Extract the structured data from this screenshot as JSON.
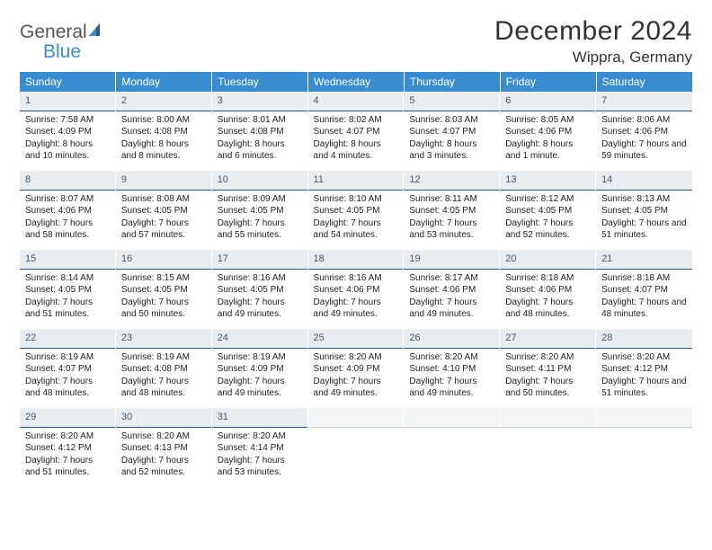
{
  "brand": {
    "word1": "General",
    "word2": "Blue"
  },
  "title": "December 2024",
  "location": "Wippra, Germany",
  "colors": {
    "header_bg": "#3a8cd0",
    "daynum_bg": "#e9edf0",
    "daynum_border": "#2e5a8a",
    "text": "#222222",
    "brand_blue": "#3a8cd0",
    "brand_gray": "#555555"
  },
  "weekdays": [
    "Sunday",
    "Monday",
    "Tuesday",
    "Wednesday",
    "Thursday",
    "Friday",
    "Saturday"
  ],
  "rows": [
    [
      {
        "day": "1",
        "sunrise": "Sunrise: 7:58 AM",
        "sunset": "Sunset: 4:09 PM",
        "daylight": "Daylight: 8 hours and 10 minutes."
      },
      {
        "day": "2",
        "sunrise": "Sunrise: 8:00 AM",
        "sunset": "Sunset: 4:08 PM",
        "daylight": "Daylight: 8 hours and 8 minutes."
      },
      {
        "day": "3",
        "sunrise": "Sunrise: 8:01 AM",
        "sunset": "Sunset: 4:08 PM",
        "daylight": "Daylight: 8 hours and 6 minutes."
      },
      {
        "day": "4",
        "sunrise": "Sunrise: 8:02 AM",
        "sunset": "Sunset: 4:07 PM",
        "daylight": "Daylight: 8 hours and 4 minutes."
      },
      {
        "day": "5",
        "sunrise": "Sunrise: 8:03 AM",
        "sunset": "Sunset: 4:07 PM",
        "daylight": "Daylight: 8 hours and 3 minutes."
      },
      {
        "day": "6",
        "sunrise": "Sunrise: 8:05 AM",
        "sunset": "Sunset: 4:06 PM",
        "daylight": "Daylight: 8 hours and 1 minute."
      },
      {
        "day": "7",
        "sunrise": "Sunrise: 8:06 AM",
        "sunset": "Sunset: 4:06 PM",
        "daylight": "Daylight: 7 hours and 59 minutes."
      }
    ],
    [
      {
        "day": "8",
        "sunrise": "Sunrise: 8:07 AM",
        "sunset": "Sunset: 4:06 PM",
        "daylight": "Daylight: 7 hours and 58 minutes."
      },
      {
        "day": "9",
        "sunrise": "Sunrise: 8:08 AM",
        "sunset": "Sunset: 4:05 PM",
        "daylight": "Daylight: 7 hours and 57 minutes."
      },
      {
        "day": "10",
        "sunrise": "Sunrise: 8:09 AM",
        "sunset": "Sunset: 4:05 PM",
        "daylight": "Daylight: 7 hours and 55 minutes."
      },
      {
        "day": "11",
        "sunrise": "Sunrise: 8:10 AM",
        "sunset": "Sunset: 4:05 PM",
        "daylight": "Daylight: 7 hours and 54 minutes."
      },
      {
        "day": "12",
        "sunrise": "Sunrise: 8:11 AM",
        "sunset": "Sunset: 4:05 PM",
        "daylight": "Daylight: 7 hours and 53 minutes."
      },
      {
        "day": "13",
        "sunrise": "Sunrise: 8:12 AM",
        "sunset": "Sunset: 4:05 PM",
        "daylight": "Daylight: 7 hours and 52 minutes."
      },
      {
        "day": "14",
        "sunrise": "Sunrise: 8:13 AM",
        "sunset": "Sunset: 4:05 PM",
        "daylight": "Daylight: 7 hours and 51 minutes."
      }
    ],
    [
      {
        "day": "15",
        "sunrise": "Sunrise: 8:14 AM",
        "sunset": "Sunset: 4:05 PM",
        "daylight": "Daylight: 7 hours and 51 minutes."
      },
      {
        "day": "16",
        "sunrise": "Sunrise: 8:15 AM",
        "sunset": "Sunset: 4:05 PM",
        "daylight": "Daylight: 7 hours and 50 minutes."
      },
      {
        "day": "17",
        "sunrise": "Sunrise: 8:16 AM",
        "sunset": "Sunset: 4:05 PM",
        "daylight": "Daylight: 7 hours and 49 minutes."
      },
      {
        "day": "18",
        "sunrise": "Sunrise: 8:16 AM",
        "sunset": "Sunset: 4:06 PM",
        "daylight": "Daylight: 7 hours and 49 minutes."
      },
      {
        "day": "19",
        "sunrise": "Sunrise: 8:17 AM",
        "sunset": "Sunset: 4:06 PM",
        "daylight": "Daylight: 7 hours and 49 minutes."
      },
      {
        "day": "20",
        "sunrise": "Sunrise: 8:18 AM",
        "sunset": "Sunset: 4:06 PM",
        "daylight": "Daylight: 7 hours and 48 minutes."
      },
      {
        "day": "21",
        "sunrise": "Sunrise: 8:18 AM",
        "sunset": "Sunset: 4:07 PM",
        "daylight": "Daylight: 7 hours and 48 minutes."
      }
    ],
    [
      {
        "day": "22",
        "sunrise": "Sunrise: 8:19 AM",
        "sunset": "Sunset: 4:07 PM",
        "daylight": "Daylight: 7 hours and 48 minutes."
      },
      {
        "day": "23",
        "sunrise": "Sunrise: 8:19 AM",
        "sunset": "Sunset: 4:08 PM",
        "daylight": "Daylight: 7 hours and 48 minutes."
      },
      {
        "day": "24",
        "sunrise": "Sunrise: 8:19 AM",
        "sunset": "Sunset: 4:09 PM",
        "daylight": "Daylight: 7 hours and 49 minutes."
      },
      {
        "day": "25",
        "sunrise": "Sunrise: 8:20 AM",
        "sunset": "Sunset: 4:09 PM",
        "daylight": "Daylight: 7 hours and 49 minutes."
      },
      {
        "day": "26",
        "sunrise": "Sunrise: 8:20 AM",
        "sunset": "Sunset: 4:10 PM",
        "daylight": "Daylight: 7 hours and 49 minutes."
      },
      {
        "day": "27",
        "sunrise": "Sunrise: 8:20 AM",
        "sunset": "Sunset: 4:11 PM",
        "daylight": "Daylight: 7 hours and 50 minutes."
      },
      {
        "day": "28",
        "sunrise": "Sunrise: 8:20 AM",
        "sunset": "Sunset: 4:12 PM",
        "daylight": "Daylight: 7 hours and 51 minutes."
      }
    ],
    [
      {
        "day": "29",
        "sunrise": "Sunrise: 8:20 AM",
        "sunset": "Sunset: 4:12 PM",
        "daylight": "Daylight: 7 hours and 51 minutes."
      },
      {
        "day": "30",
        "sunrise": "Sunrise: 8:20 AM",
        "sunset": "Sunset: 4:13 PM",
        "daylight": "Daylight: 7 hours and 52 minutes."
      },
      {
        "day": "31",
        "sunrise": "Sunrise: 8:20 AM",
        "sunset": "Sunset: 4:14 PM",
        "daylight": "Daylight: 7 hours and 53 minutes."
      },
      {
        "empty": true
      },
      {
        "empty": true
      },
      {
        "empty": true
      },
      {
        "empty": true
      }
    ]
  ]
}
